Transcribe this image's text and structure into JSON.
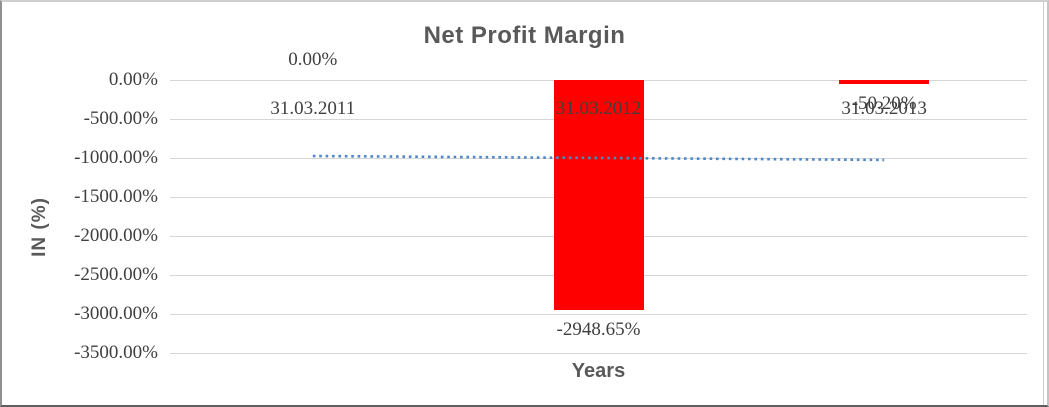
{
  "chart_data": {
    "type": "bar",
    "title": "Net Profit Margin",
    "xlabel": "Years",
    "ylabel": "IN (%)",
    "categories": [
      "31.03.2011",
      "31.03.2012",
      "31.03.2013"
    ],
    "series": [
      {
        "name": "Net Profit Margin",
        "values": [
          0,
          -2948.65,
          -50.2
        ]
      }
    ],
    "data_labels": [
      "0.00%",
      "-2948.65%",
      "-50.20%"
    ],
    "y_ticks": {
      "labels": [
        "0.00%",
        "-500.00%",
        "-1000.00%",
        "-1500.00%",
        "-2000.00%",
        "-2500.00%",
        "-3000.00%",
        "-3500.00%"
      ],
      "values": [
        0,
        -500,
        -1000,
        -1500,
        -2000,
        -2500,
        -3000,
        -3500
      ]
    },
    "ylim": [
      -3500,
      0
    ],
    "grid": true,
    "legend_position": "none",
    "trendline": {
      "type": "linear",
      "style": "dotted",
      "endpoints_pct": [
        -974.5,
        -1024.7
      ]
    },
    "colors": {
      "bar": "#FF0000",
      "trendline": "#4E86C8",
      "gridline": "#D6D6D6",
      "label_text": "#3F3F3F",
      "title_text": "#595959"
    }
  }
}
